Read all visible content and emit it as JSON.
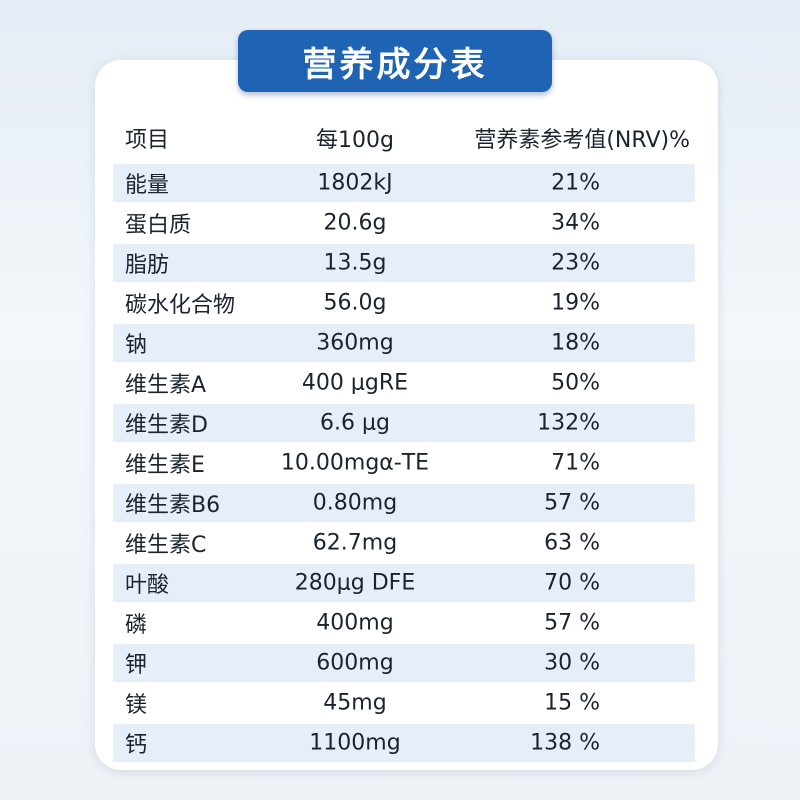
{
  "header": {
    "title": "营养成分表"
  },
  "table": {
    "columns": [
      "项目",
      "每100g",
      "营养素参考值(NRV)%"
    ],
    "rows": [
      [
        "能量",
        "1802kJ",
        "21%"
      ],
      [
        "蛋白质",
        "20.6g",
        "34%"
      ],
      [
        "脂肪",
        "13.5g",
        "23%"
      ],
      [
        "碳水化合物",
        "56.0g",
        "19%"
      ],
      [
        "钠",
        "360mg",
        "18%"
      ],
      [
        "维生素A",
        "400 μgRE",
        "50%"
      ],
      [
        "维生素D",
        "6.6 μg",
        "132%"
      ],
      [
        "维生素E",
        "10.00mgα-TE",
        "71%"
      ],
      [
        "维生素B6",
        "0.80mg",
        "57 %"
      ],
      [
        "维生素C",
        "62.7mg",
        "63 %"
      ],
      [
        "叶酸",
        "280μg DFE",
        "70 %"
      ],
      [
        "磷",
        "400mg",
        "57 %"
      ],
      [
        "钾",
        "600mg",
        "30 %"
      ],
      [
        "镁",
        "45mg",
        "15 %"
      ],
      [
        "钙",
        "1100mg",
        "138 %"
      ]
    ]
  }
}
